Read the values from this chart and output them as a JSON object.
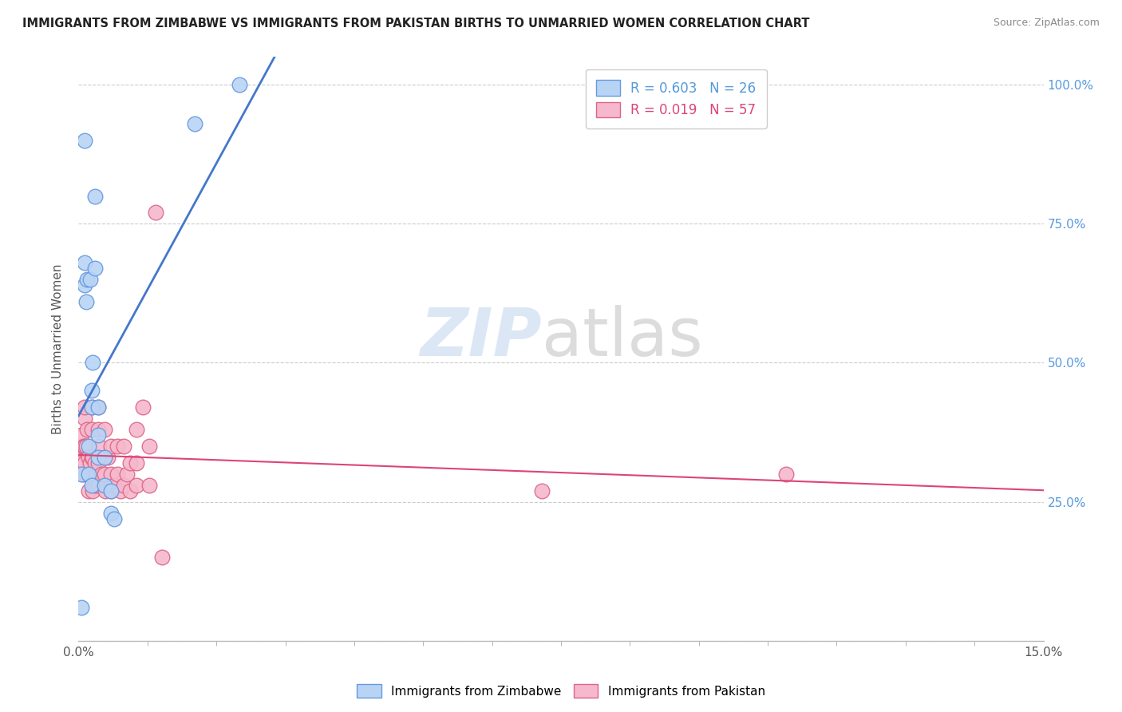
{
  "title": "IMMIGRANTS FROM ZIMBABWE VS IMMIGRANTS FROM PAKISTAN BIRTHS TO UNMARRIED WOMEN CORRELATION CHART",
  "source": "Source: ZipAtlas.com",
  "ylabel": "Births to Unmarried Women",
  "legend_entries": [
    {
      "label": "R = 0.603   N = 26"
    },
    {
      "label": "R = 0.019   N = 57"
    }
  ],
  "legend_bottom": [
    "Immigrants from Zimbabwe",
    "Immigrants from Pakistan"
  ],
  "xlim": [
    0.0,
    0.15
  ],
  "ylim": [
    0.0,
    1.05
  ],
  "zimbabwe_color": "#b8d4f5",
  "pakistan_color": "#f5b8cc",
  "zimbabwe_edge": "#6699dd",
  "pakistan_edge": "#dd6688",
  "zimbabwe_trendline_color": "#4477cc",
  "pakistan_trendline_color": "#dd4477",
  "zimbabwe_x": [
    0.0005,
    0.0005,
    0.001,
    0.001,
    0.001,
    0.0012,
    0.0013,
    0.0015,
    0.0015,
    0.0018,
    0.002,
    0.002,
    0.002,
    0.0022,
    0.0025,
    0.0025,
    0.003,
    0.003,
    0.003,
    0.004,
    0.004,
    0.005,
    0.005,
    0.0055,
    0.018,
    0.025
  ],
  "zimbabwe_y": [
    0.06,
    0.3,
    0.64,
    0.68,
    0.9,
    0.61,
    0.65,
    0.3,
    0.35,
    0.65,
    0.42,
    0.45,
    0.28,
    0.5,
    0.67,
    0.8,
    0.33,
    0.37,
    0.42,
    0.28,
    0.33,
    0.23,
    0.27,
    0.22,
    0.93,
    1.0
  ],
  "pakistan_x": [
    0.0003,
    0.0005,
    0.0005,
    0.0007,
    0.0008,
    0.001,
    0.001,
    0.001,
    0.001,
    0.0012,
    0.0012,
    0.0013,
    0.0015,
    0.0015,
    0.0015,
    0.0018,
    0.002,
    0.002,
    0.002,
    0.002,
    0.0022,
    0.0022,
    0.0025,
    0.0025,
    0.003,
    0.003,
    0.003,
    0.003,
    0.0032,
    0.0035,
    0.004,
    0.004,
    0.004,
    0.0042,
    0.0045,
    0.005,
    0.005,
    0.005,
    0.0055,
    0.006,
    0.006,
    0.0065,
    0.007,
    0.007,
    0.0075,
    0.008,
    0.008,
    0.009,
    0.009,
    0.009,
    0.01,
    0.011,
    0.011,
    0.012,
    0.013,
    0.072,
    0.11
  ],
  "pakistan_y": [
    0.32,
    0.35,
    0.37,
    0.3,
    0.35,
    0.32,
    0.35,
    0.4,
    0.42,
    0.3,
    0.35,
    0.38,
    0.27,
    0.3,
    0.33,
    0.32,
    0.3,
    0.33,
    0.38,
    0.42,
    0.27,
    0.33,
    0.28,
    0.32,
    0.28,
    0.32,
    0.38,
    0.42,
    0.35,
    0.3,
    0.3,
    0.33,
    0.38,
    0.27,
    0.33,
    0.27,
    0.3,
    0.35,
    0.28,
    0.3,
    0.35,
    0.27,
    0.28,
    0.35,
    0.3,
    0.27,
    0.32,
    0.28,
    0.32,
    0.38,
    0.42,
    0.28,
    0.35,
    0.77,
    0.15,
    0.27,
    0.3
  ]
}
